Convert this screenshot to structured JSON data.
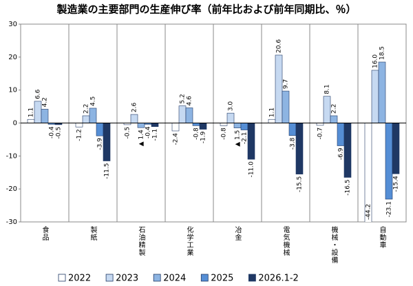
{
  "chart_data": {
    "type": "bar",
    "title": "製造業の主要部門の生産伸び率（前年比および前年同期比、％）",
    "categories": [
      "食品",
      "製紙",
      "石油精製",
      "化学工業",
      "冶金",
      "電気機械",
      "機械・設備",
      "自動車"
    ],
    "series": [
      {
        "name": "2022",
        "color": "#ffffff",
        "values": [
          1.1,
          -1.2,
          -0.5,
          -2.4,
          -0.8,
          1.1,
          -0.7,
          -44.2
        ],
        "value_labels": [
          "1.1",
          "-1.2",
          "-0.5",
          "-2.4",
          "-0.8",
          "1.1",
          "-0.7",
          "-44.2"
        ]
      },
      {
        "name": "2023",
        "color": "#c6d9f1",
        "values": [
          6.6,
          2.2,
          2.6,
          5.2,
          3.0,
          20.6,
          8.1,
          16.0
        ],
        "value_labels": [
          "6.6",
          "2.2",
          "2.6",
          "5.2",
          "3.0",
          "20.6",
          "8.1",
          "16.0"
        ]
      },
      {
        "name": "2024",
        "color": "#8db4e2",
        "values": [
          4.2,
          4.5,
          -1.4,
          4.6,
          -1.5,
          9.7,
          2.2,
          18.5
        ],
        "value_labels": [
          "4.2",
          "4.5",
          "▲ 1.4",
          "4.6",
          "▲ 1.5",
          "9.7",
          "2.2",
          "18.5"
        ]
      },
      {
        "name": "2025",
        "color": "#558ed5",
        "values": [
          -0.4,
          -3.9,
          -0.4,
          -0.8,
          -2.1,
          -3.8,
          -6.9,
          -23.1
        ],
        "value_labels": [
          "-0.4",
          "-3.9",
          "-0.4",
          "-0.8",
          "-2.1",
          "-3.8",
          "-6.9",
          "-23.1"
        ]
      },
      {
        "name": "2026.1-2",
        "color": "#1f3864",
        "values": [
          -0.5,
          -11.5,
          -1.1,
          -1.9,
          -11.0,
          -15.5,
          -16.5,
          -15.4
        ],
        "value_labels": [
          "-0.5",
          "-11.5",
          "-1.1",
          "-1.9",
          "-11.0",
          "-15.5",
          "-16.5",
          "-15.4"
        ]
      }
    ],
    "ylim": [
      -30,
      30
    ],
    "yticks": [
      -30,
      -20,
      -10,
      0,
      10,
      20,
      30
    ]
  }
}
